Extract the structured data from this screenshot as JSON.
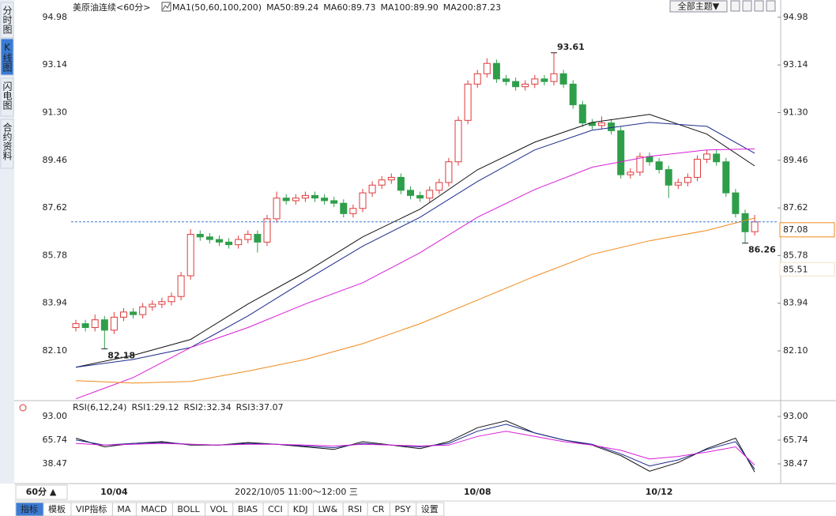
{
  "sidebar_tabs": [
    "分时图",
    "K线图",
    "闪电图",
    "合约资料"
  ],
  "theme_button": "全部主题▼",
  "period_button": "60分 ▲",
  "toolbar": [
    "指标",
    "模板",
    "VIP指标",
    "MA",
    "MACD",
    "BOLL",
    "VOL",
    "BIAS",
    "CCI",
    "KDJ",
    "LW&",
    "RSI",
    "CR",
    "PSY",
    "设置"
  ],
  "chart_data": {
    "type": "candlestick",
    "title": "美原油连续",
    "period": "<60分>",
    "indicator": "MA1(50,60,100,200)",
    "up_color": "#e03a3a",
    "down_color": "#2e9e4a",
    "ylim": [
      80.24,
      95.22
    ],
    "yticks": [
      94.98,
      93.14,
      {
        "value": 91.3,
        "label": "91.30"
      },
      89.46,
      87.62,
      85.78,
      83.94,
      {
        "value": 82.1,
        "label": "82.10"
      }
    ],
    "categories": [
      null,
      null,
      null,
      null,
      "10/04",
      null,
      null,
      null,
      null,
      null,
      null,
      null,
      null,
      null,
      null,
      null,
      null,
      null,
      null,
      null,
      null,
      null,
      null,
      null,
      null,
      null,
      null,
      null,
      null,
      null,
      null,
      null,
      null,
      null,
      null,
      null,
      null,
      null,
      null,
      null,
      null,
      null,
      "10/08",
      null,
      null,
      null,
      null,
      null,
      null,
      null,
      null,
      null,
      null,
      null,
      null,
      null,
      null,
      null,
      null,
      null,
      null,
      "10/12",
      null,
      null,
      null,
      null,
      null,
      null,
      null,
      null,
      null,
      null
    ],
    "candles": [
      [
        83.0,
        83.3,
        82.85,
        83.15
      ],
      [
        83.15,
        83.3,
        82.85,
        83.0
      ],
      [
        83.0,
        83.5,
        82.85,
        83.3
      ],
      [
        83.3,
        83.45,
        82.18,
        82.9
      ],
      [
        82.9,
        83.6,
        82.75,
        83.4
      ],
      [
        83.4,
        83.75,
        83.25,
        83.6
      ],
      [
        83.6,
        83.75,
        83.35,
        83.5
      ],
      [
        83.5,
        83.95,
        83.35,
        83.8
      ],
      [
        83.8,
        84.05,
        83.65,
        83.9
      ],
      [
        83.9,
        84.15,
        83.75,
        84.0
      ],
      [
        84.0,
        84.35,
        83.85,
        84.2
      ],
      [
        84.2,
        85.15,
        84.05,
        85.0
      ],
      [
        85.0,
        86.8,
        84.85,
        86.6
      ],
      [
        86.6,
        86.75,
        86.35,
        86.5
      ],
      [
        86.5,
        86.65,
        86.25,
        86.4
      ],
      [
        86.4,
        86.55,
        86.15,
        86.3
      ],
      [
        86.3,
        86.45,
        86.05,
        86.2
      ],
      [
        86.2,
        86.55,
        86.05,
        86.4
      ],
      [
        86.4,
        86.75,
        86.25,
        86.6
      ],
      [
        86.6,
        86.75,
        85.9,
        86.3
      ],
      [
        86.3,
        87.35,
        86.15,
        87.2
      ],
      [
        87.2,
        88.25,
        87.05,
        88.0
      ],
      [
        88.0,
        88.15,
        87.75,
        87.9
      ],
      [
        87.9,
        88.15,
        87.75,
        88.0
      ],
      [
        88.0,
        88.25,
        87.85,
        88.1
      ],
      [
        88.1,
        88.25,
        87.85,
        88.0
      ],
      [
        88.0,
        88.15,
        87.75,
        87.9
      ],
      [
        87.9,
        88.05,
        87.65,
        87.8
      ],
      [
        87.8,
        87.95,
        87.25,
        87.4
      ],
      [
        87.4,
        87.75,
        87.25,
        87.6
      ],
      [
        87.6,
        88.35,
        87.45,
        88.2
      ],
      [
        88.2,
        88.65,
        88.05,
        88.5
      ],
      [
        88.5,
        88.85,
        88.35,
        88.7
      ],
      [
        88.7,
        88.95,
        88.55,
        88.8
      ],
      [
        88.8,
        88.95,
        88.15,
        88.3
      ],
      [
        88.3,
        88.45,
        87.95,
        88.1
      ],
      [
        88.1,
        88.25,
        87.85,
        88.0
      ],
      [
        88.0,
        88.45,
        87.85,
        88.3
      ],
      [
        88.3,
        88.75,
        88.15,
        88.6
      ],
      [
        88.6,
        89.55,
        88.45,
        89.4
      ],
      [
        89.4,
        91.15,
        89.25,
        91.0
      ],
      [
        91.0,
        92.55,
        90.85,
        92.4
      ],
      [
        92.4,
        92.95,
        92.25,
        92.8
      ],
      [
        92.8,
        93.4,
        92.65,
        93.2
      ],
      [
        93.2,
        93.35,
        92.45,
        92.6
      ],
      [
        92.6,
        92.75,
        92.35,
        92.5
      ],
      [
        92.5,
        92.65,
        92.15,
        92.3
      ],
      [
        92.3,
        92.55,
        92.15,
        92.4
      ],
      [
        92.4,
        92.75,
        92.25,
        92.6
      ],
      [
        92.6,
        92.75,
        92.35,
        92.5
      ],
      [
        92.5,
        93.61,
        92.35,
        92.8
      ],
      [
        92.8,
        92.95,
        92.25,
        92.4
      ],
      [
        92.4,
        92.55,
        91.45,
        91.6
      ],
      [
        91.6,
        91.75,
        90.75,
        90.9
      ],
      [
        90.9,
        91.05,
        90.65,
        90.8
      ],
      [
        90.8,
        91.15,
        90.65,
        90.9
      ],
      [
        90.9,
        91.05,
        90.45,
        90.6
      ],
      [
        90.6,
        90.75,
        88.75,
        88.9
      ],
      [
        88.9,
        89.15,
        88.75,
        89.0
      ],
      [
        89.0,
        89.75,
        88.85,
        89.6
      ],
      [
        89.6,
        89.75,
        89.25,
        89.4
      ],
      [
        89.4,
        89.55,
        88.95,
        89.1
      ],
      [
        89.1,
        89.25,
        88.0,
        88.5
      ],
      [
        88.5,
        88.75,
        88.35,
        88.6
      ],
      [
        88.6,
        88.95,
        88.45,
        88.8
      ],
      [
        88.8,
        89.65,
        88.65,
        89.5
      ],
      [
        89.5,
        89.85,
        89.35,
        89.7
      ],
      [
        89.7,
        89.85,
        89.25,
        89.4
      ],
      [
        89.4,
        89.55,
        88.05,
        88.2
      ],
      [
        88.2,
        88.35,
        87.25,
        87.4
      ],
      [
        87.4,
        87.55,
        86.26,
        86.7
      ],
      [
        86.7,
        87.35,
        86.55,
        87.08
      ]
    ],
    "ma": {
      "x": [
        0,
        6,
        12,
        18,
        24,
        30,
        36,
        42,
        48,
        54,
        60,
        66,
        71
      ],
      "series": [
        {
          "name": "MA50:89.24",
          "color": "#111111",
          "values": [
            81.47,
            81.93,
            82.54,
            83.91,
            85.13,
            86.5,
            87.57,
            89.09,
            90.16,
            90.92,
            91.23,
            90.47,
            89.24
          ]
        },
        {
          "name": "MA60:89.73",
          "color": "#1c2a8c",
          "values": [
            81.47,
            81.77,
            82.23,
            83.45,
            84.82,
            86.14,
            87.26,
            88.64,
            89.86,
            90.62,
            90.92,
            90.77,
            89.73
          ]
        },
        {
          "name": "MA100:89.90",
          "color": "#d81ed8",
          "values": [
            80.25,
            81.07,
            82.23,
            83.0,
            83.91,
            84.73,
            85.89,
            87.26,
            88.33,
            89.19,
            89.61,
            89.86,
            89.9
          ]
        },
        {
          "name": "MA200:87.23",
          "color": "#f08a1c",
          "values": [
            80.95,
            80.86,
            80.92,
            81.32,
            81.77,
            82.38,
            83.15,
            84.06,
            84.98,
            85.83,
            86.35,
            86.75,
            87.23
          ]
        }
      ]
    },
    "last_price": 87.08,
    "price_labels": [
      85.51
    ],
    "annotations": [
      93.61,
      82.18,
      86.26
    ],
    "cursor_label": "2022/10/05 11:00～12:00 三",
    "rsi": {
      "title": "RSI(6,12,24)",
      "ylim": [
        15.75,
        106.63
      ],
      "yticks": [
        {
          "value": 93,
          "label": "93.00"
        },
        65.74,
        38.47
      ],
      "x": [
        0,
        3,
        6,
        9,
        12,
        15,
        18,
        21,
        24,
        27,
        30,
        33,
        36,
        39,
        42,
        45,
        48,
        51,
        54,
        57,
        60,
        63,
        66,
        69,
        71
      ],
      "series": [
        {
          "name": "RSI1:29.12",
          "color": "#111111",
          "values": [
            68,
            58,
            62,
            64,
            60,
            60,
            63,
            61,
            58,
            55,
            64,
            60,
            56,
            64,
            80,
            88,
            74,
            66,
            60,
            48,
            30,
            40,
            56,
            68,
            29.12
          ]
        },
        {
          "name": "RSI2:32.34",
          "color": "#1c2a8c",
          "values": [
            66,
            60,
            62,
            63,
            61,
            60,
            62,
            61,
            59,
            57,
            62,
            60,
            58,
            62,
            76,
            84,
            74,
            66,
            61,
            50,
            36,
            43,
            55,
            64,
            32.34
          ]
        },
        {
          "name": "RSI3:37.07",
          "color": "#d81ed8",
          "values": [
            62,
            60,
            61,
            62,
            61,
            60,
            61,
            61,
            60,
            59,
            61,
            60,
            59,
            60,
            70,
            76,
            70,
            64,
            60,
            54,
            44,
            47,
            52,
            58,
            37.07
          ]
        }
      ]
    }
  }
}
